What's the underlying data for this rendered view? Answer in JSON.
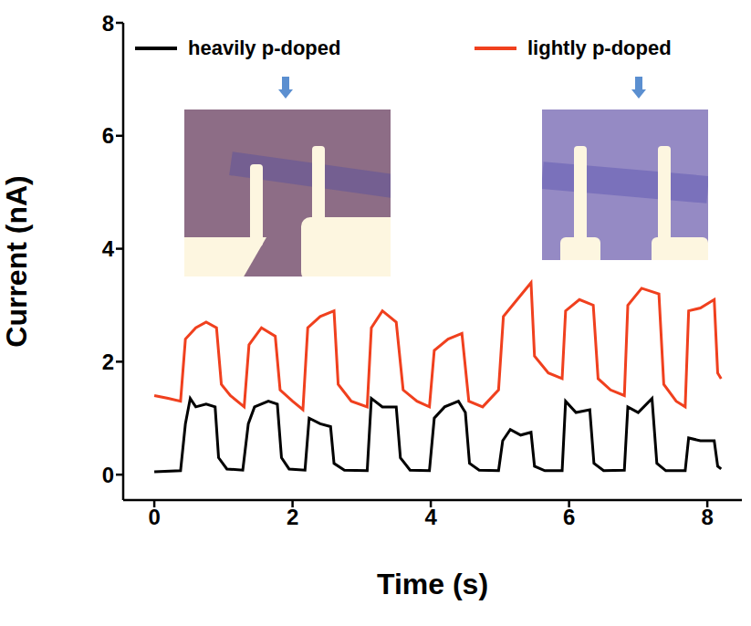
{
  "chart_data": {
    "type": "line",
    "xlabel": "Time (s)",
    "ylabel": "Current (nA)",
    "xlim": [
      -0.45,
      8.5
    ],
    "xticks": [
      0,
      2,
      4,
      6,
      8
    ],
    "ylim": [
      -0.45,
      8
    ],
    "yticks": [
      0,
      2,
      4,
      6,
      8
    ],
    "grid": false,
    "legend": "top",
    "series": [
      {
        "name": "heavily p-doped",
        "color": "#000000",
        "x": [
          0.0,
          0.38,
          0.45,
          0.52,
          0.6,
          0.75,
          0.88,
          0.93,
          1.05,
          1.28,
          1.36,
          1.45,
          1.65,
          1.78,
          1.84,
          1.95,
          2.18,
          2.24,
          2.4,
          2.55,
          2.6,
          2.75,
          3.08,
          3.14,
          3.3,
          3.5,
          3.56,
          3.7,
          3.98,
          4.05,
          4.2,
          4.4,
          4.5,
          4.56,
          4.7,
          4.98,
          5.04,
          5.15,
          5.3,
          5.45,
          5.5,
          5.65,
          5.9,
          5.95,
          6.1,
          6.3,
          6.36,
          6.5,
          6.8,
          6.85,
          7.0,
          7.2,
          7.27,
          7.4,
          7.68,
          7.73,
          7.9,
          8.1,
          8.15,
          8.2
        ],
        "values": [
          0.05,
          0.07,
          0.9,
          1.35,
          1.2,
          1.25,
          1.2,
          0.3,
          0.1,
          0.08,
          0.9,
          1.2,
          1.3,
          1.25,
          0.3,
          0.1,
          0.08,
          1.0,
          0.9,
          0.85,
          0.2,
          0.08,
          0.07,
          1.35,
          1.2,
          1.2,
          0.3,
          0.08,
          0.07,
          1.0,
          1.2,
          1.3,
          1.1,
          0.2,
          0.08,
          0.07,
          0.6,
          0.8,
          0.7,
          0.75,
          0.15,
          0.07,
          0.07,
          1.3,
          1.1,
          1.15,
          0.2,
          0.07,
          0.08,
          1.2,
          1.1,
          1.35,
          0.2,
          0.07,
          0.07,
          0.65,
          0.6,
          0.6,
          0.15,
          0.1
        ]
      },
      {
        "name": "lightly p-doped",
        "color": "#f0401e",
        "x": [
          0.0,
          0.2,
          0.38,
          0.45,
          0.6,
          0.75,
          0.9,
          0.97,
          1.1,
          1.3,
          1.37,
          1.55,
          1.75,
          1.82,
          2.0,
          2.15,
          2.22,
          2.4,
          2.6,
          2.66,
          2.85,
          3.08,
          3.14,
          3.3,
          3.5,
          3.6,
          3.8,
          3.98,
          4.05,
          4.25,
          4.45,
          4.55,
          4.75,
          4.98,
          5.05,
          5.25,
          5.45,
          5.5,
          5.7,
          5.9,
          5.95,
          6.15,
          6.35,
          6.42,
          6.6,
          6.8,
          6.85,
          7.05,
          7.3,
          7.37,
          7.55,
          7.68,
          7.73,
          7.9,
          8.1,
          8.15,
          8.2
        ],
        "values": [
          1.4,
          1.35,
          1.3,
          2.4,
          2.6,
          2.7,
          2.6,
          1.6,
          1.4,
          1.2,
          2.3,
          2.6,
          2.45,
          1.5,
          1.3,
          1.15,
          2.6,
          2.8,
          2.9,
          1.6,
          1.3,
          1.2,
          2.6,
          2.9,
          2.7,
          1.5,
          1.3,
          1.2,
          2.2,
          2.4,
          2.5,
          1.3,
          1.2,
          1.5,
          2.8,
          3.1,
          3.4,
          2.1,
          1.8,
          1.7,
          2.9,
          3.1,
          3.0,
          1.7,
          1.5,
          1.4,
          3.0,
          3.3,
          3.2,
          1.6,
          1.3,
          1.2,
          2.9,
          2.95,
          3.1,
          1.8,
          1.7
        ]
      }
    ]
  }
}
